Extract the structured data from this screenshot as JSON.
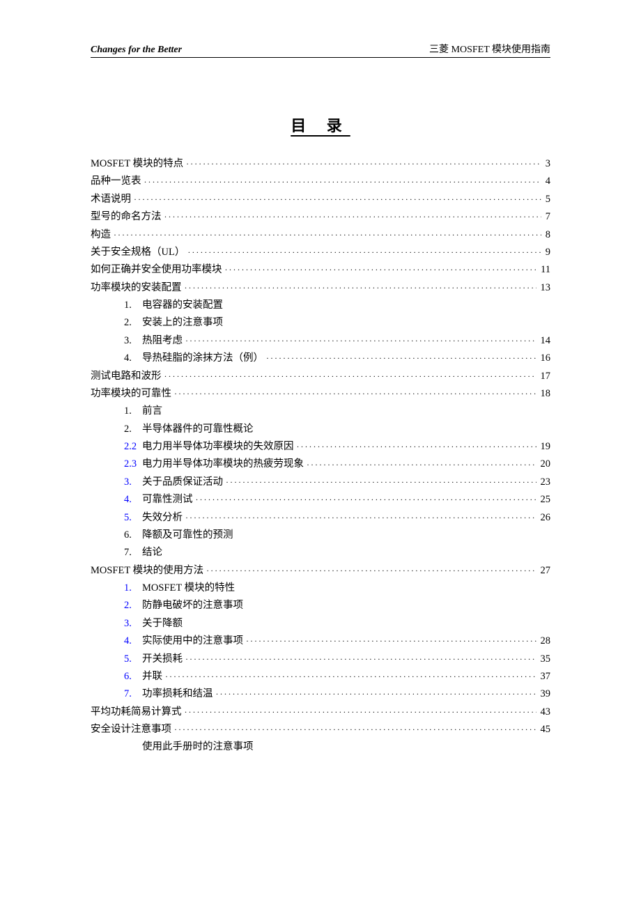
{
  "header": {
    "left": "Changes for the Better",
    "right": "三菱 MOSFET 模块使用指南"
  },
  "title": "目 录",
  "entries": [
    {
      "indent": 0,
      "num": "",
      "text": "MOSFET 模块的特点",
      "page": "3",
      "link": false
    },
    {
      "indent": 0,
      "num": "",
      "text": "品种一览表",
      "page": "4",
      "link": false
    },
    {
      "indent": 0,
      "num": "",
      "text": "术语说明",
      "page": "5",
      "link": false
    },
    {
      "indent": 0,
      "num": "",
      "text": "型号的命名方法",
      "page": "7",
      "link": false
    },
    {
      "indent": 0,
      "num": "",
      "text": "构造",
      "page": "8",
      "link": false
    },
    {
      "indent": 0,
      "num": "",
      "text": "关于安全规格（UL）",
      "page": "9",
      "link": false
    },
    {
      "indent": 0,
      "num": "",
      "text": "如何正确并安全使用功率模块",
      "page": "11",
      "link": false
    },
    {
      "indent": 0,
      "num": "",
      "text": "功率模块的安装配置",
      "page": "13",
      "link": false
    },
    {
      "indent": 1,
      "num": "1.",
      "text": "电容器的安装配置",
      "page": "",
      "link": false
    },
    {
      "indent": 1,
      "num": "2.",
      "text": "安装上的注意事项",
      "page": "",
      "link": false
    },
    {
      "indent": 1,
      "num": "3.",
      "text": "热阻考虑",
      "page": "14",
      "link": false
    },
    {
      "indent": 1,
      "num": "4.",
      "text": "导热硅脂的涂抹方法（例）",
      "page": "16",
      "link": false
    },
    {
      "indent": 0,
      "num": "",
      "text": "测试电路和波形",
      "page": "17",
      "link": false
    },
    {
      "indent": 0,
      "num": "",
      "text": "功率模块的可靠性",
      "page": "18",
      "link": false
    },
    {
      "indent": 1,
      "num": "1.",
      "text": "前言",
      "page": "",
      "link": false
    },
    {
      "indent": 1,
      "num": "2.",
      "text": "半导体器件的可靠性概论",
      "page": "",
      "link": false
    },
    {
      "indent": 1,
      "num": "2.2",
      "text": "电力用半导体功率模块的失效原因",
      "page": "19",
      "link": true
    },
    {
      "indent": 1,
      "num": "2.3",
      "text": "电力用半导体功率模块的热疲劳现象",
      "page": "20",
      "link": true
    },
    {
      "indent": 1,
      "num": "3.",
      "text": "关于品质保证活动",
      "page": "23",
      "link": true
    },
    {
      "indent": 1,
      "num": "4.",
      "text": "可靠性测试",
      "page": "25",
      "link": true
    },
    {
      "indent": 1,
      "num": "5.",
      "text": "失效分析",
      "page": "26",
      "link": true
    },
    {
      "indent": 1,
      "num": "6.",
      "text": "降额及可靠性的预测",
      "page": "",
      "link": false
    },
    {
      "indent": 1,
      "num": "7.",
      "text": "结论",
      "page": "",
      "link": false
    },
    {
      "indent": 0,
      "num": "",
      "text": "MOSFET 模块的使用方法",
      "page": "27",
      "link": false
    },
    {
      "indent": 1,
      "num": "1.",
      "text": "MOSFET 模块的特性",
      "page": "",
      "link": true
    },
    {
      "indent": 1,
      "num": "2.",
      "text": "防静电破坏的注意事项",
      "page": "",
      "link": true
    },
    {
      "indent": 1,
      "num": "3.",
      "text": "关于降额",
      "page": "",
      "link": true
    },
    {
      "indent": 1,
      "num": "4.",
      "text": "实际使用中的注意事项",
      "page": "28",
      "link": true
    },
    {
      "indent": 1,
      "num": "5.",
      "text": "开关损耗",
      "page": "35",
      "link": true
    },
    {
      "indent": 1,
      "num": "6.",
      "text": "并联",
      "page": "37",
      "link": true
    },
    {
      "indent": 1,
      "num": "7.",
      "text": "功率损耗和结温",
      "page": "39",
      "link": true
    },
    {
      "indent": 0,
      "num": "",
      "text": "平均功耗简易计算式",
      "page": "43",
      "link": false
    },
    {
      "indent": 0,
      "num": "",
      "text": "安全设计注意事项",
      "page": "45",
      "link": false
    },
    {
      "indent": 1,
      "num": "",
      "text": "使用此手册时的注意事项",
      "page": "",
      "link": false
    }
  ],
  "colors": {
    "text": "#000000",
    "link": "#0000ff",
    "background": "#ffffff"
  },
  "typography": {
    "body_fontsize": 14.5,
    "title_fontsize": 22,
    "header_fontsize": 14
  }
}
